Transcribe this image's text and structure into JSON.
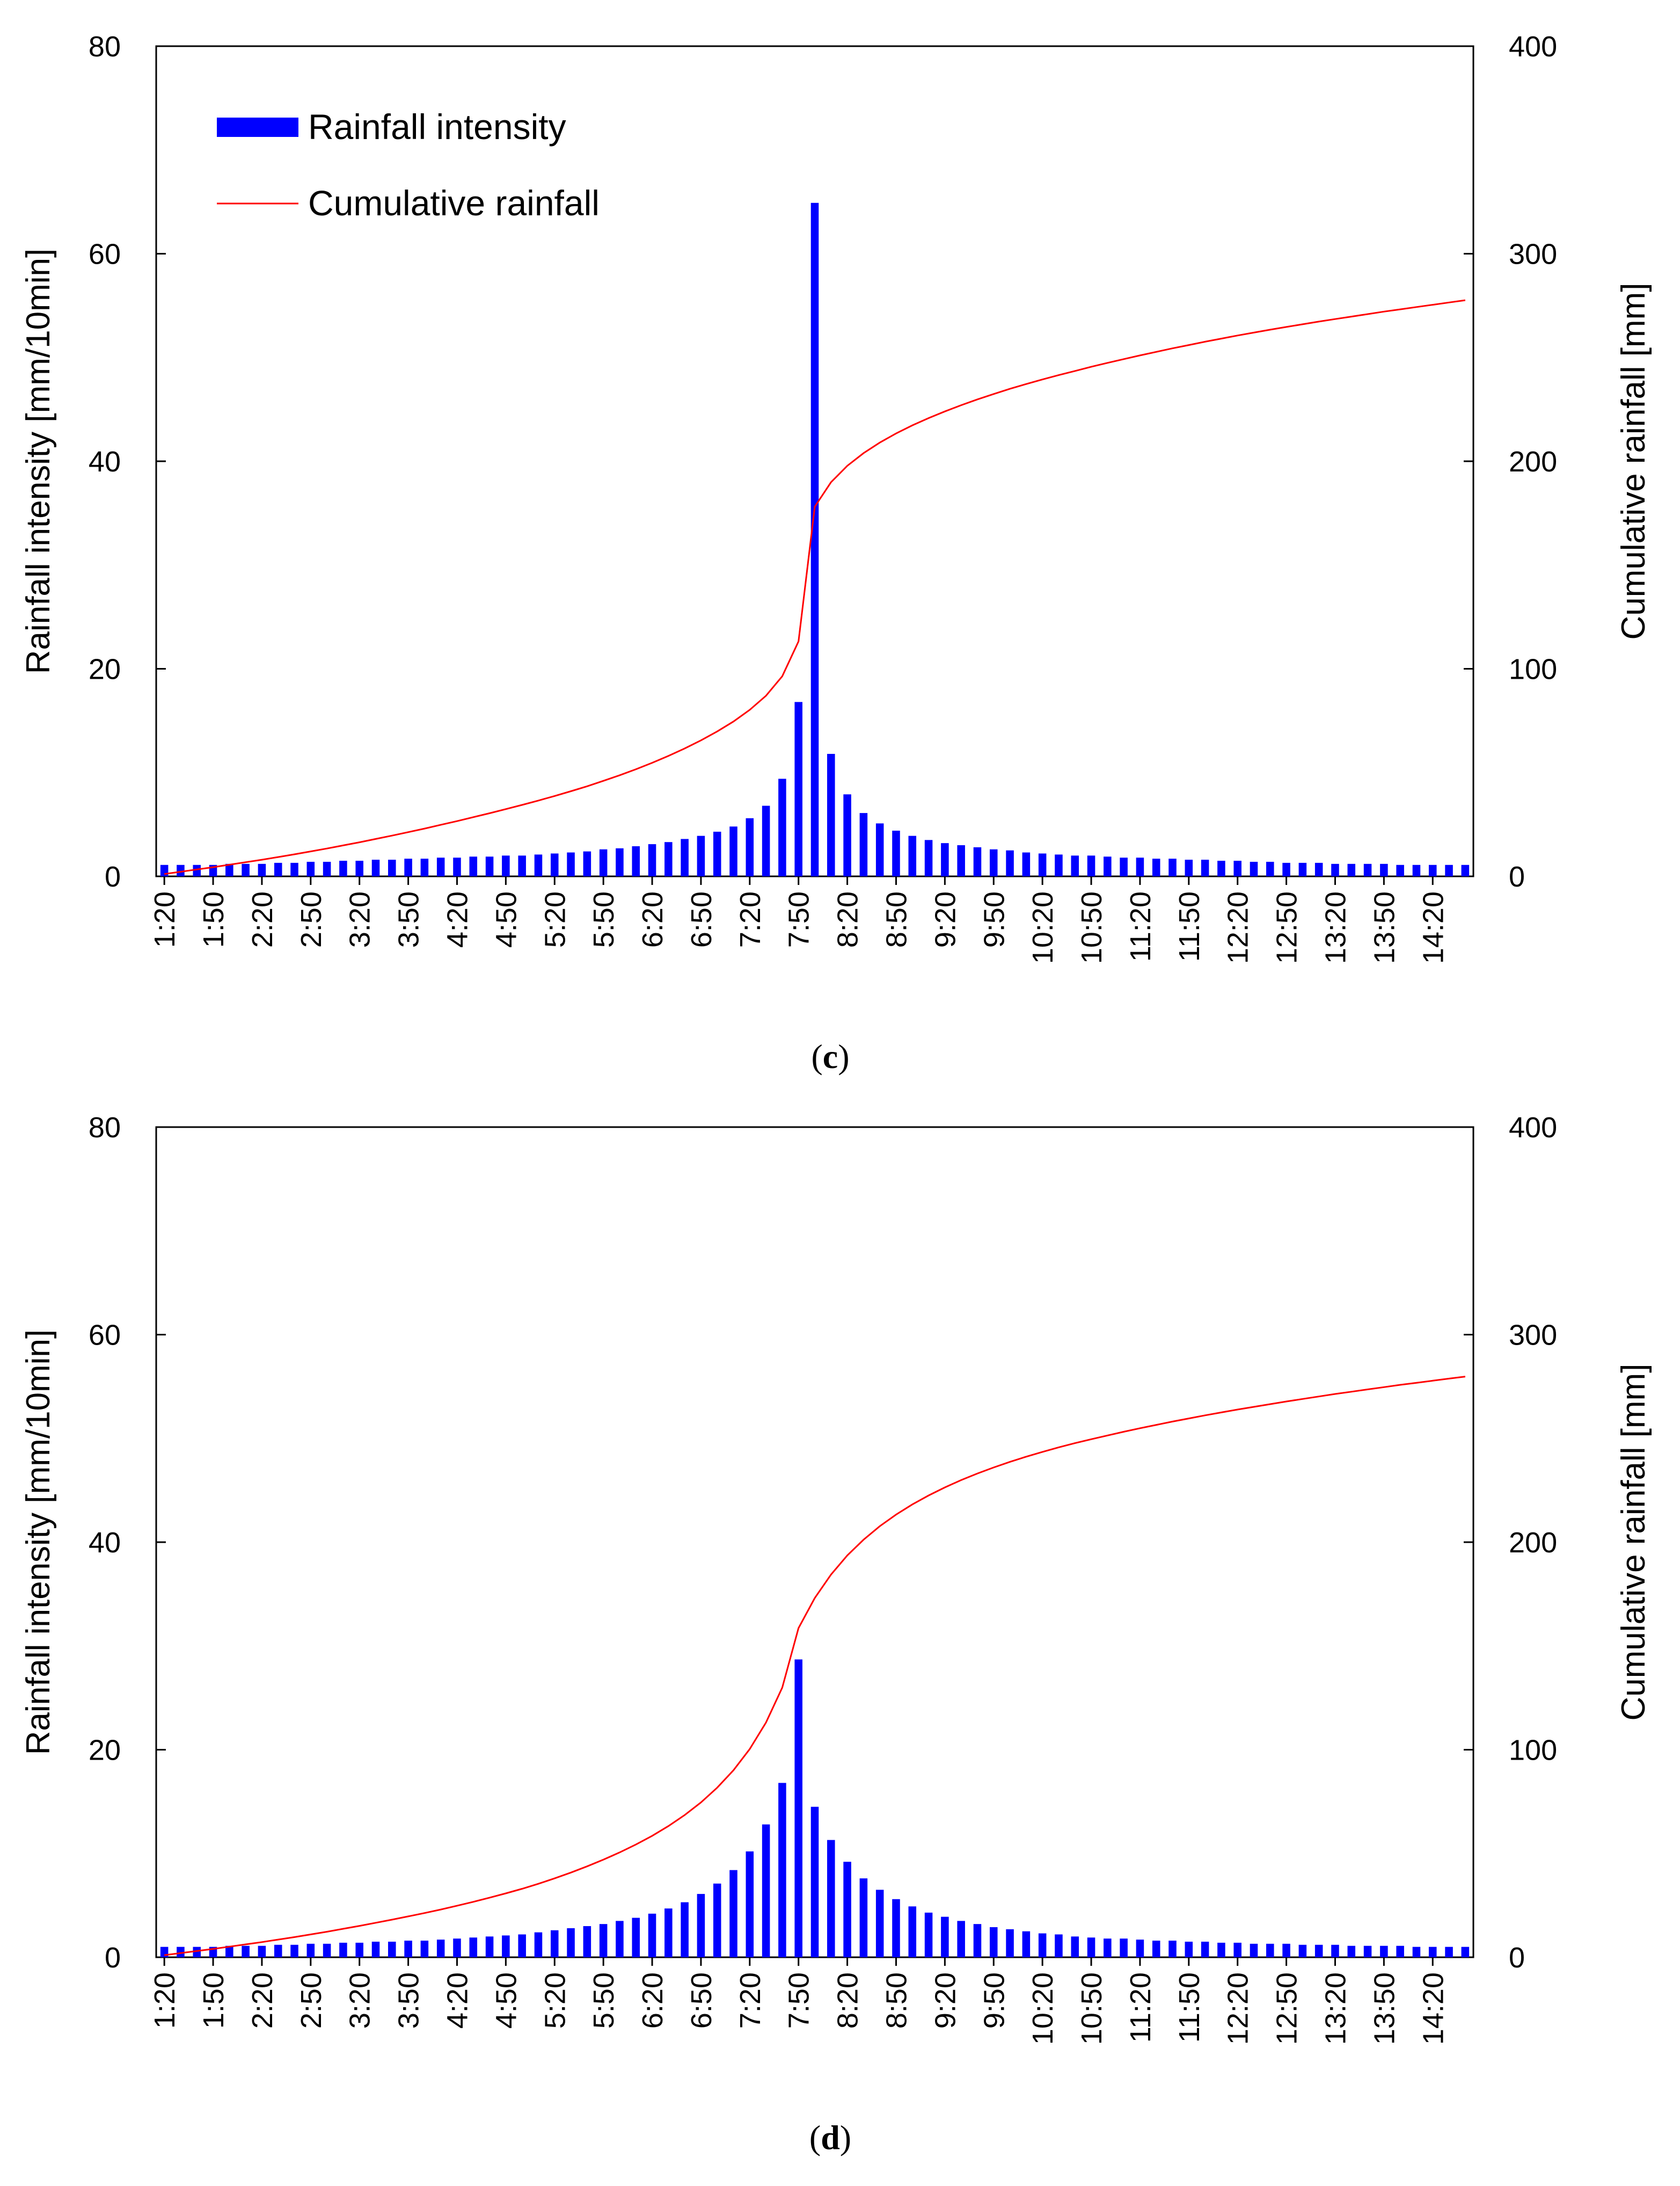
{
  "legend": {
    "bar_label": "Rainfall intensity",
    "line_label": "Cumulative rainfall"
  },
  "colors": {
    "bar": "#0000FF",
    "line": "#FF0000",
    "axis": "#000000"
  },
  "chart_data": [
    {
      "type": "bar+line",
      "panel": "c",
      "caption_open": "(",
      "caption_letter": "c",
      "caption_close": ")",
      "ylabel_left": "Rainfall intensity [mm/10min]",
      "ylabel_right": "Cumulative rainfall [mm]",
      "ylim_left": [
        0,
        80
      ],
      "ylim_right": [
        0,
        400
      ],
      "yticks_left": [
        0,
        20,
        40,
        60,
        80
      ],
      "yticks_right": [
        0,
        100,
        200,
        300,
        400
      ],
      "xtick_labels": [
        "1:20",
        "1:50",
        "2:20",
        "2:50",
        "3:20",
        "3:50",
        "4:20",
        "4:50",
        "5:20",
        "5:50",
        "6:20",
        "6:50",
        "7:20",
        "7:50",
        "8:20",
        "8:50",
        "9:20",
        "9:50",
        "10:20",
        "10:50",
        "11:20",
        "11:50",
        "12:20",
        "12:50",
        "13:20",
        "13:50",
        "14:20"
      ],
      "series": [
        {
          "name": "Rainfall intensity",
          "axis": "left",
          "values": [
            1.1,
            1.1,
            1.1,
            1.1,
            1.2,
            1.2,
            1.2,
            1.3,
            1.3,
            1.4,
            1.4,
            1.5,
            1.5,
            1.6,
            1.6,
            1.7,
            1.7,
            1.8,
            1.8,
            1.9,
            1.9,
            2.0,
            2.0,
            2.1,
            2.2,
            2.3,
            2.4,
            2.6,
            2.7,
            2.9,
            3.1,
            3.3,
            3.6,
            3.9,
            4.3,
            4.8,
            5.6,
            6.8,
            9.4,
            16.8,
            64.9,
            11.8,
            7.9,
            6.1,
            5.1,
            4.4,
            3.9,
            3.5,
            3.2,
            3.0,
            2.8,
            2.6,
            2.5,
            2.3,
            2.2,
            2.1,
            2.0,
            2.0,
            1.9,
            1.8,
            1.8,
            1.7,
            1.7,
            1.6,
            1.6,
            1.5,
            1.5,
            1.4,
            1.4,
            1.3,
            1.3,
            1.3,
            1.2,
            1.2,
            1.2,
            1.2,
            1.1,
            1.1,
            1.1,
            1.1,
            1.1
          ]
        },
        {
          "name": "Cumulative rainfall",
          "axis": "right",
          "values": [
            1.1,
            2.2,
            3.3,
            4.4,
            5.6,
            6.8,
            8.0,
            9.3,
            10.6,
            12.0,
            13.4,
            14.9,
            16.4,
            18.0,
            19.6,
            21.3,
            23.0,
            24.8,
            26.6,
            28.5,
            30.4,
            32.4,
            34.4,
            36.5,
            38.7,
            41.0,
            43.4,
            46.0,
            48.7,
            51.6,
            54.7,
            58.0,
            61.6,
            65.5,
            69.8,
            74.6,
            80.2,
            87.0,
            96.4,
            113.2,
            178.1,
            189.9,
            197.8,
            203.9,
            209.0,
            213.4,
            217.3,
            220.8,
            224.0,
            227.0,
            229.8,
            232.4,
            234.9,
            237.2,
            239.4,
            241.5,
            243.5,
            245.5,
            247.4,
            249.2,
            251.0,
            252.7,
            254.4,
            256.0,
            257.6,
            259.1,
            260.6,
            262.0,
            263.4,
            264.7,
            266.0,
            267.3,
            268.5,
            269.7,
            270.9,
            272.1,
            273.2,
            274.3,
            275.4,
            276.5,
            277.6
          ]
        }
      ]
    },
    {
      "type": "bar+line",
      "panel": "d",
      "caption_open": "(",
      "caption_letter": "d",
      "caption_close": ")",
      "ylabel_left": "Rainfall intensity [mm/10min]",
      "ylabel_right": "Cumulative rainfall [mm]",
      "ylim_left": [
        0,
        80
      ],
      "ylim_right": [
        0,
        400
      ],
      "yticks_left": [
        0,
        20,
        40,
        60,
        80
      ],
      "yticks_right": [
        0,
        100,
        200,
        300,
        400
      ],
      "xtick_labels": [
        "1:20",
        "1:50",
        "2:20",
        "2:50",
        "3:20",
        "3:50",
        "4:20",
        "4:50",
        "5:20",
        "5:50",
        "6:20",
        "6:50",
        "7:20",
        "7:50",
        "8:20",
        "8:50",
        "9:20",
        "9:50",
        "10:20",
        "10:50",
        "11:20",
        "11:50",
        "12:20",
        "12:50",
        "13:20",
        "13:50",
        "14:20"
      ],
      "series": [
        {
          "name": "Rainfall intensity",
          "axis": "left",
          "values": [
            1.0,
            1.0,
            1.0,
            1.0,
            1.1,
            1.1,
            1.1,
            1.2,
            1.2,
            1.3,
            1.3,
            1.4,
            1.4,
            1.5,
            1.5,
            1.6,
            1.6,
            1.7,
            1.8,
            1.9,
            2.0,
            2.1,
            2.2,
            2.4,
            2.6,
            2.8,
            3.0,
            3.2,
            3.5,
            3.8,
            4.2,
            4.7,
            5.3,
            6.1,
            7.1,
            8.4,
            10.2,
            12.8,
            16.8,
            28.7,
            14.5,
            11.3,
            9.2,
            7.6,
            6.5,
            5.6,
            4.9,
            4.3,
            3.9,
            3.5,
            3.2,
            2.9,
            2.7,
            2.5,
            2.3,
            2.2,
            2.0,
            1.9,
            1.8,
            1.8,
            1.7,
            1.6,
            1.6,
            1.5,
            1.5,
            1.4,
            1.4,
            1.3,
            1.3,
            1.3,
            1.2,
            1.2,
            1.2,
            1.1,
            1.1,
            1.1,
            1.1,
            1.0,
            1.0,
            1.0,
            1.0
          ]
        },
        {
          "name": "Cumulative rainfall",
          "axis": "right",
          "values": [
            1.0,
            2.0,
            3.0,
            4.0,
            5.1,
            6.2,
            7.3,
            8.5,
            9.7,
            11.0,
            12.3,
            13.7,
            15.1,
            16.6,
            18.1,
            19.7,
            21.3,
            23.0,
            24.8,
            26.7,
            28.7,
            30.8,
            33.0,
            35.4,
            38.0,
            40.8,
            43.8,
            47.0,
            50.5,
            54.3,
            58.5,
            63.2,
            68.5,
            74.6,
            81.7,
            90.1,
            100.3,
            113.1,
            129.9,
            158.6,
            173.1,
            184.4,
            193.6,
            201.2,
            207.7,
            213.3,
            218.2,
            222.5,
            226.4,
            229.9,
            233.1,
            236.0,
            238.7,
            241.2,
            243.5,
            245.7,
            247.7,
            249.6,
            251.4,
            253.2,
            254.9,
            256.5,
            258.1,
            259.6,
            261.1,
            262.5,
            263.9,
            265.2,
            266.5,
            267.8,
            269.0,
            270.2,
            271.4,
            272.5,
            273.6,
            274.7,
            275.8,
            276.8,
            277.8,
            278.8,
            279.8
          ]
        }
      ]
    }
  ]
}
